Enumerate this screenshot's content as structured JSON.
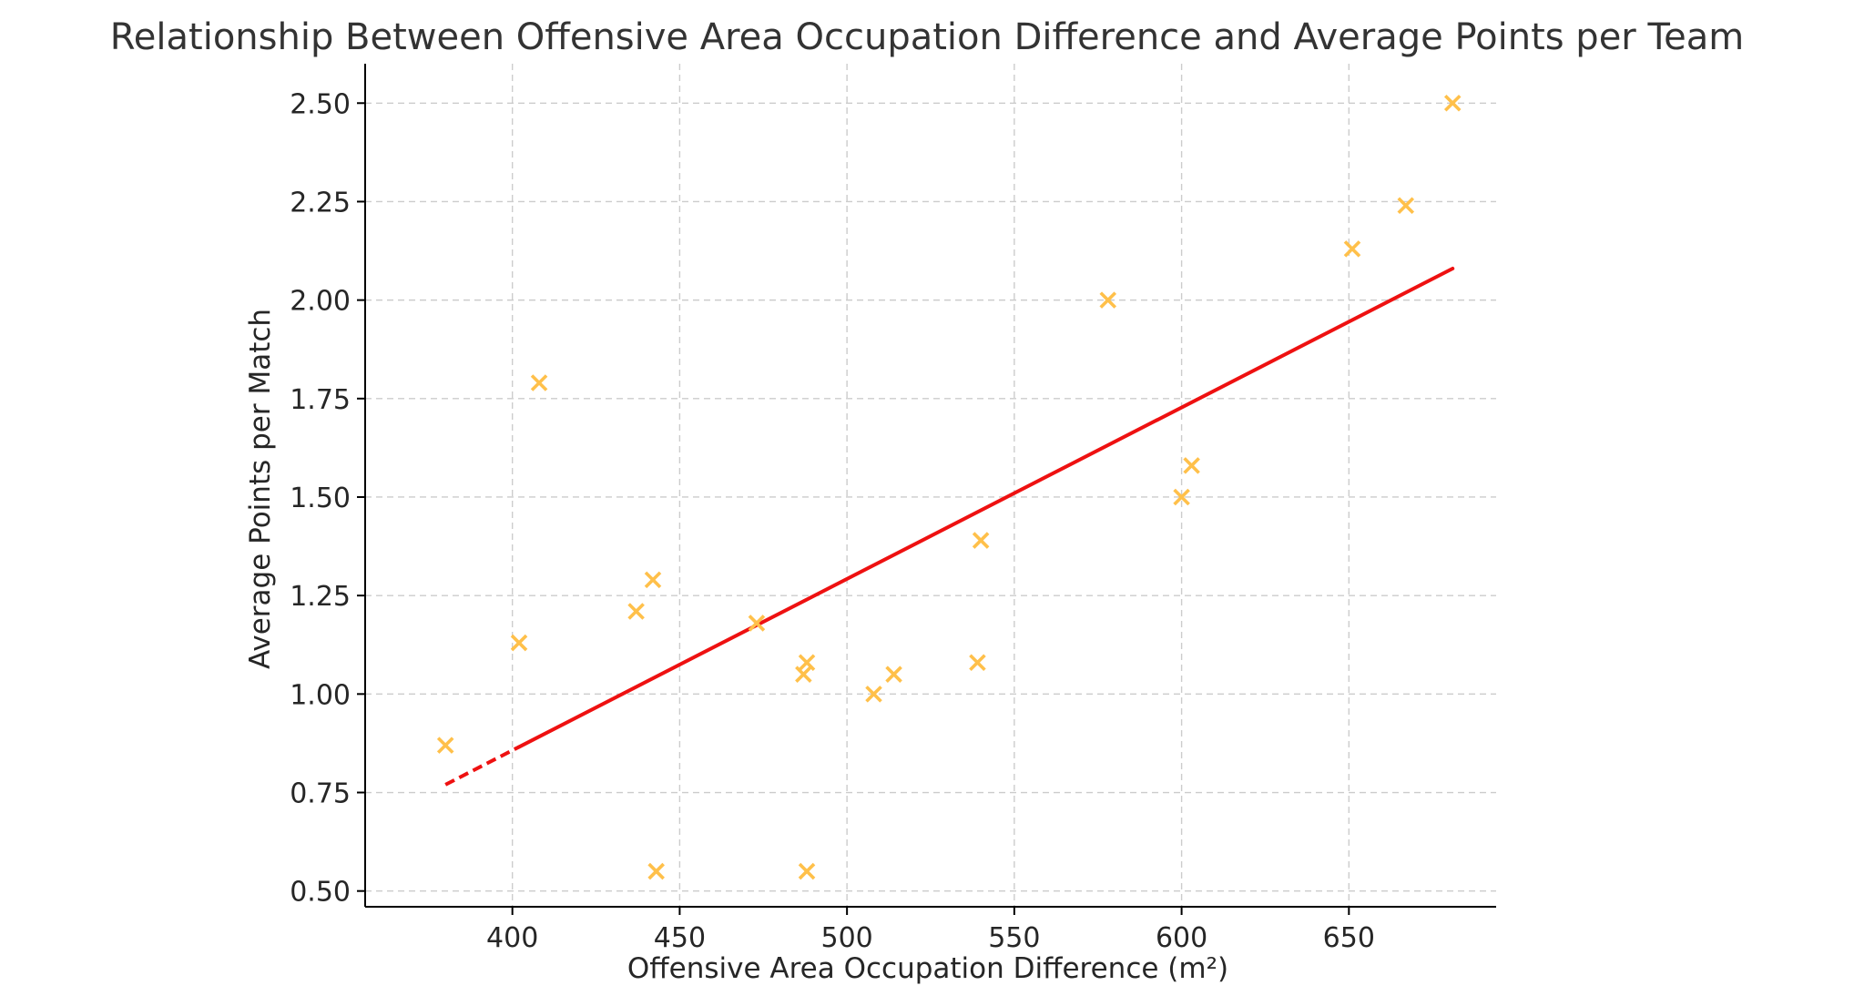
{
  "chart_data": {
    "type": "scatter",
    "title": "Relationship Between Offensive Area Occupation Difference and Average Points per Team",
    "xlabel": "Offensive Area Occupation Difference (m²)",
    "ylabel": "Average Points per Match",
    "xlim": [
      356,
      694
    ],
    "ylim": [
      0.46,
      2.6
    ],
    "x_ticks": [
      400,
      450,
      500,
      550,
      600,
      650
    ],
    "x_tick_labels": [
      "400",
      "450",
      "500",
      "550",
      "600",
      "650"
    ],
    "y_ticks": [
      0.5,
      0.75,
      1.0,
      1.25,
      1.5,
      1.75,
      2.0,
      2.25,
      2.5
    ],
    "y_tick_labels": [
      "0.50",
      "0.75",
      "1.00",
      "1.25",
      "1.50",
      "1.75",
      "2.00",
      "2.25",
      "2.50"
    ],
    "grid": true,
    "marker": "x",
    "colors": {
      "points": "#FFC04A",
      "trend": "#EE1111"
    },
    "series": [
      {
        "points": [
          {
            "x": 380,
            "y": 0.87
          },
          {
            "x": 402,
            "y": 1.13
          },
          {
            "x": 408,
            "y": 1.79
          },
          {
            "x": 437,
            "y": 1.21
          },
          {
            "x": 442,
            "y": 1.29
          },
          {
            "x": 443,
            "y": 0.55
          },
          {
            "x": 473,
            "y": 1.18
          },
          {
            "x": 487,
            "y": 1.05
          },
          {
            "x": 488,
            "y": 1.08
          },
          {
            "x": 488,
            "y": 0.55
          },
          {
            "x": 508,
            "y": 1.0
          },
          {
            "x": 514,
            "y": 1.05
          },
          {
            "x": 539,
            "y": 1.08
          },
          {
            "x": 540,
            "y": 1.39
          },
          {
            "x": 578,
            "y": 2.0
          },
          {
            "x": 600,
            "y": 1.5
          },
          {
            "x": 603,
            "y": 1.58
          },
          {
            "x": 651,
            "y": 2.13
          },
          {
            "x": 667,
            "y": 2.24
          },
          {
            "x": 681,
            "y": 2.5
          }
        ]
      }
    ],
    "trend_line": {
      "style": "solid",
      "dashed_segment_end_x": 402,
      "points": [
        {
          "x": 380,
          "y": 0.77
        },
        {
          "x": 681,
          "y": 2.08
        }
      ]
    }
  }
}
